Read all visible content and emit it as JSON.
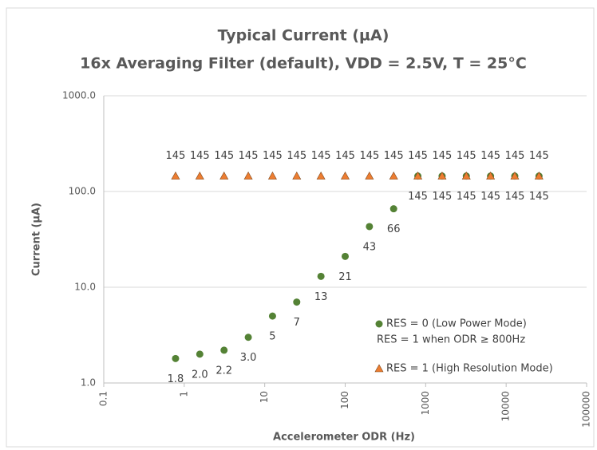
{
  "chart_data": {
    "type": "scatter",
    "title": "Typical Current (µA)",
    "subtitle": "16x Averaging Filter (default), VDD = 2.5V, T = 25°C",
    "x_label": "Accelerometer ODR (Hz)",
    "y_label": "Current (µA)",
    "x_log": true,
    "y_log": true,
    "grid": true,
    "xlim": [
      0.1,
      100000
    ],
    "xticks": [
      0.1,
      1,
      10,
      100,
      1000,
      10000,
      100000
    ],
    "ylim": [
      1,
      1000
    ],
    "yticks": [
      {
        "value": 1,
        "label": "1.0"
      },
      {
        "value": 10,
        "label": "10.0"
      },
      {
        "value": 100,
        "label": "100.0"
      },
      {
        "value": 1000,
        "label": "1000.0"
      }
    ],
    "x": [
      0.78,
      1.56,
      3.125,
      6.25,
      12.5,
      25,
      50,
      100,
      200,
      400,
      800,
      1600,
      3200,
      6400,
      12800,
      25600
    ],
    "series": [
      {
        "name": "RES = 0 (Low Power Mode)",
        "color": "#548235",
        "marker": "circle",
        "values": [
          1.8,
          2,
          2.2,
          3,
          5,
          7,
          13,
          21,
          43,
          66,
          145,
          145,
          145,
          145,
          145,
          145
        ],
        "value_labels": [
          "1.8",
          "2.0",
          "2.2",
          "3.0",
          "5",
          "7",
          "13",
          "21",
          "43",
          "66",
          "145",
          "145",
          "145",
          "145",
          "145",
          "145"
        ]
      },
      {
        "name": "RES = 1 (High Resolution Mode)",
        "color": "#ed7d31",
        "marker": "triangle",
        "values": [
          145,
          145,
          145,
          145,
          145,
          145,
          145,
          145,
          145,
          145,
          145,
          145,
          145,
          145,
          145,
          145
        ],
        "value_labels": [
          "145",
          "145",
          "145",
          "145",
          "145",
          "145",
          "145",
          "145",
          "145",
          "145",
          "145",
          "145",
          "145",
          "145",
          "145",
          "145"
        ]
      }
    ],
    "legend_note": "RES = 1 when ODR ≥ 800Hz",
    "legend_position": "lower right"
  }
}
